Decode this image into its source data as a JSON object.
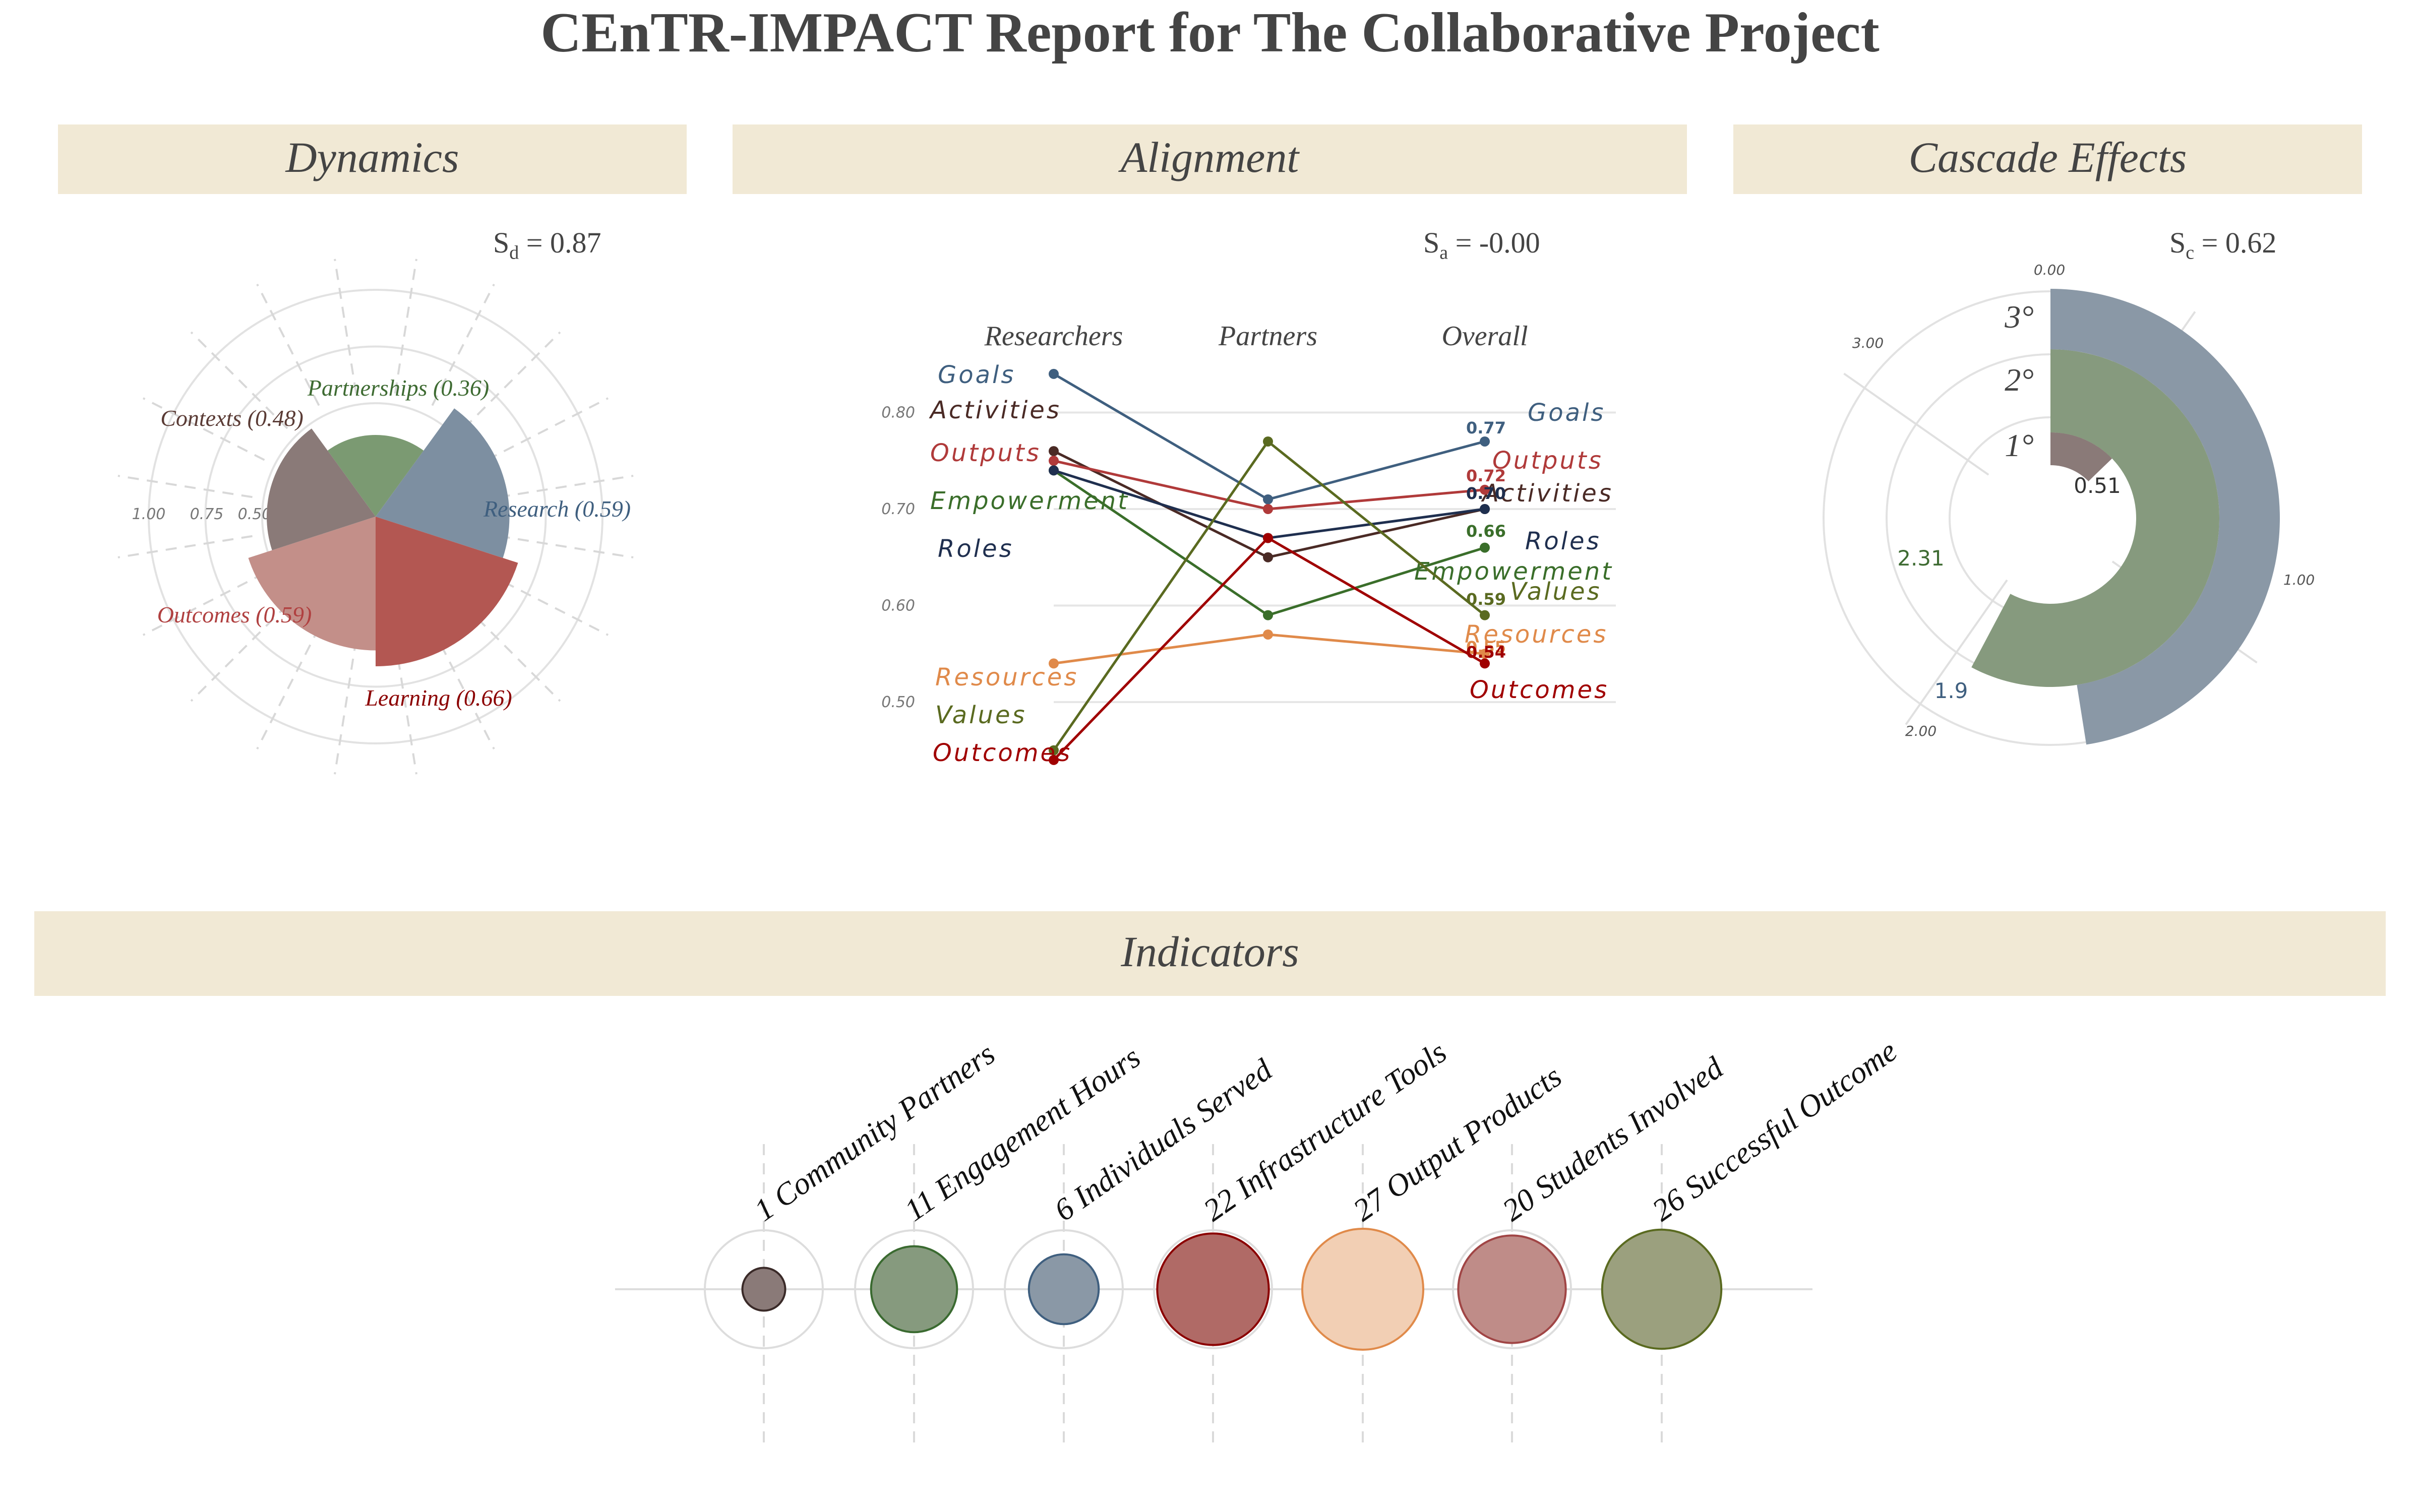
{
  "title": "CEnTR-IMPACT Report for The Collaborative Project",
  "dynamics": {
    "heading": "Dynamics",
    "score_label": "S",
    "score_sub": "d",
    "score_value": "= 0.87",
    "radial_ticks": [
      "1.00",
      "0.75",
      "0.50"
    ],
    "chart_data": {
      "type": "polar-bar",
      "categories": [
        "Partnerships",
        "Research",
        "Learning",
        "Outcomes",
        "Contexts"
      ],
      "labels": [
        "Partnerships (0.36)",
        "Research (0.59)",
        "Learning (0.66)",
        "Outcomes (0.59)",
        "Contexts (0.48)"
      ],
      "values": [
        0.36,
        0.59,
        0.66,
        0.59,
        0.48
      ],
      "colors": [
        "#7b9a72",
        "#7d8fa1",
        "#b35752",
        "#c38f89",
        "#8a7a78"
      ],
      "label_colors": [
        "#3e6b32",
        "#3f5f7f",
        "#8b0000",
        "#b04040",
        "#5a3b35"
      ],
      "rlim": [
        0,
        1
      ]
    }
  },
  "alignment": {
    "heading": "Alignment",
    "score_label": "S",
    "score_sub": "a",
    "score_value": "= -0.00",
    "column_headers": [
      "Researchers",
      "Partners",
      "Overall"
    ],
    "y_ticks": [
      "0.80",
      "0.70",
      "0.60",
      "0.50"
    ],
    "chart_data": {
      "type": "line",
      "x": [
        "Researchers",
        "Partners",
        "Overall"
      ],
      "ylim": [
        0.44,
        0.82
      ],
      "series": [
        {
          "name": "Goals",
          "values": [
            0.84,
            0.71,
            0.77
          ],
          "color": "#3f5f7f",
          "end_value": "0.77"
        },
        {
          "name": "Activities",
          "values": [
            0.76,
            0.65,
            0.7
          ],
          "color": "#4a2a25",
          "end_value": "0.70"
        },
        {
          "name": "Outputs",
          "values": [
            0.75,
            0.7,
            0.72
          ],
          "color": "#b03a3a",
          "end_value": "0.72"
        },
        {
          "name": "Empowerment",
          "values": [
            0.74,
            0.59,
            0.66
          ],
          "color": "#3a6e2a",
          "end_value": "0.66"
        },
        {
          "name": "Roles",
          "values": [
            0.74,
            0.67,
            0.7
          ],
          "color": "#1f2f4f",
          "end_value": "0.70"
        },
        {
          "name": "Resources",
          "values": [
            0.54,
            0.57,
            0.55
          ],
          "color": "#e08a4a",
          "end_value": "0.55"
        },
        {
          "name": "Values",
          "values": [
            0.45,
            0.77,
            0.59
          ],
          "color": "#5a6a20",
          "end_value": "0.59"
        },
        {
          "name": "Outcomes",
          "values": [
            0.44,
            0.67,
            0.54
          ],
          "color": "#a00000",
          "end_value": "0.54"
        }
      ]
    }
  },
  "cascade": {
    "heading": "Cascade Effects",
    "score_label": "S",
    "score_sub": "c",
    "score_value": "= 0.62",
    "angle_ticks": [
      "0.00",
      "1.00",
      "2.00",
      "3.00"
    ],
    "ring_labels": [
      "1°",
      "2°",
      "3°"
    ],
    "chart_data": {
      "type": "radial-bar",
      "categories": [
        "1°",
        "2°",
        "3°"
      ],
      "values": [
        0.51,
        2.31,
        1.9
      ],
      "value_labels": [
        "0.51",
        "2.31",
        "1.9"
      ],
      "colors": [
        "#8a7a78",
        "#869a7e",
        "#8a98a6"
      ],
      "label_colors": [
        "#333333",
        "#3e6b32",
        "#3f5f7f"
      ],
      "theta_max": 4
    }
  },
  "indicators": {
    "heading": "Indicators",
    "chart_data": {
      "type": "bubble",
      "labels": [
        "1 Community Partners",
        "11 Engagement Hours",
        "6 Individuals Served",
        "22 Infrastructure Tools",
        "27 Output Products",
        "20 Students Involved",
        "26 Successful Outcome"
      ],
      "values": [
        1,
        11,
        6,
        22,
        27,
        20,
        26
      ],
      "fills": [
        "#8a7a78",
        "#869a7e",
        "#8a98a6",
        "#b06a66",
        "#f2cfb4",
        "#bf8c88",
        "#9ba07e"
      ],
      "strokes": [
        "#3a2a28",
        "#3a6a30",
        "#3f5f7f",
        "#8b0000",
        "#e08a4a",
        "#a04545",
        "#5a6a20"
      ]
    }
  }
}
